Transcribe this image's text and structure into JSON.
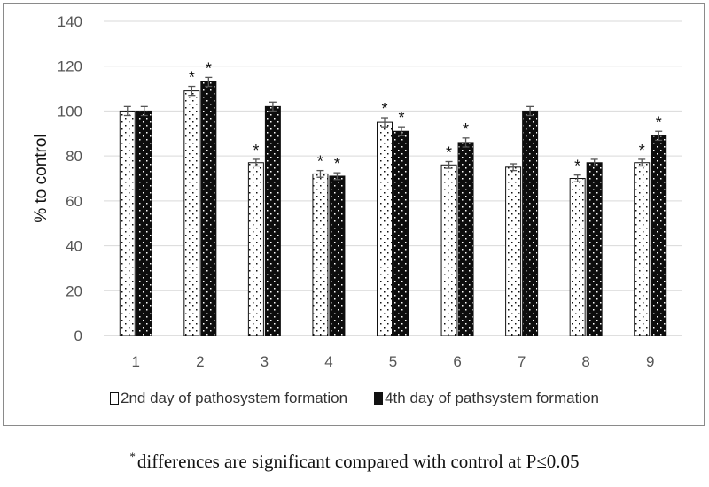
{
  "chart_data": {
    "type": "bar",
    "categories": [
      "1",
      "2",
      "3",
      "4",
      "5",
      "6",
      "7",
      "8",
      "9"
    ],
    "ylabel": "% to control",
    "ylim": [
      0,
      140
    ],
    "yticks": [
      0,
      20,
      40,
      60,
      80,
      100,
      120,
      140
    ],
    "grid": "horizontal",
    "legend_position": "bottom",
    "series": [
      {
        "name": "2nd day of pathosystem formation",
        "values": [
          100,
          109,
          77,
          72,
          95,
          76,
          75,
          70,
          77
        ],
        "errors": [
          2,
          2,
          1.5,
          1.5,
          2,
          1.5,
          1.5,
          1.5,
          1.5
        ],
        "significant": [
          false,
          true,
          true,
          true,
          true,
          true,
          false,
          true,
          true
        ],
        "pattern": "white-dotted"
      },
      {
        "name": "4th day of pathsystem formation",
        "values": [
          100,
          113,
          102,
          71,
          91,
          86,
          100,
          77,
          89
        ],
        "errors": [
          2,
          2,
          2,
          1.5,
          2,
          2,
          2,
          1.5,
          2
        ],
        "significant": [
          false,
          true,
          false,
          true,
          true,
          true,
          false,
          false,
          true
        ],
        "pattern": "black-dotted"
      }
    ],
    "significance_marker": "*"
  },
  "footnote": {
    "marker": "*",
    "text": "differences are significant compared with control at P≤0.05"
  }
}
